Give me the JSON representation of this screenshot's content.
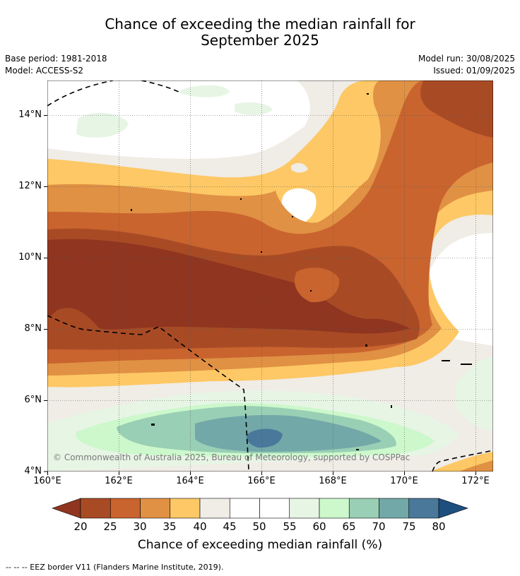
{
  "title_line1": "Chance of exceeding the median rainfall for",
  "title_line2": "September 2025",
  "base_period": "Base period: 1981-2018",
  "model": "Model: ACCESS-S2",
  "model_run": "Model run: 30/08/2025",
  "issued": "Issued: 01/09/2025",
  "copyright": "© Commonwealth of Australia 2025, Bureau of Meteorology, supported by COSPPac",
  "lat_labels": [
    "14°N",
    "12°N",
    "10°N",
    "8°N",
    "6°N",
    "4°N"
  ],
  "lon_labels": [
    "160°E",
    "162°E",
    "164°E",
    "166°E",
    "168°E",
    "170°E",
    "172°E"
  ],
  "colorbar": {
    "ticks": [
      "20",
      "25",
      "30",
      "35",
      "40",
      "45",
      "50",
      "55",
      "60",
      "65",
      "70",
      "75",
      "80"
    ],
    "label": "Chance of exceeding median rainfall (%)",
    "colors": {
      "lt20": "#8f3520",
      "20-25": "#a84b25",
      "25-30": "#c9642f",
      "30-35": "#e09144",
      "35-40": "#fdc865",
      "40-45": "#f0ece6",
      "45-50": "#ffffff",
      "50-55": "#ffffff",
      "55-60": "#e7f5e5",
      "60-65": "#ccf8cc",
      "65-70": "#99cfb4",
      "70-75": "#72a8a8",
      "75-80": "#49789a",
      "gt80": "#1e4f7f"
    }
  },
  "footnote": "--  --  -- EEZ border V11 (Flanders Marine Institute, 2019)."
}
